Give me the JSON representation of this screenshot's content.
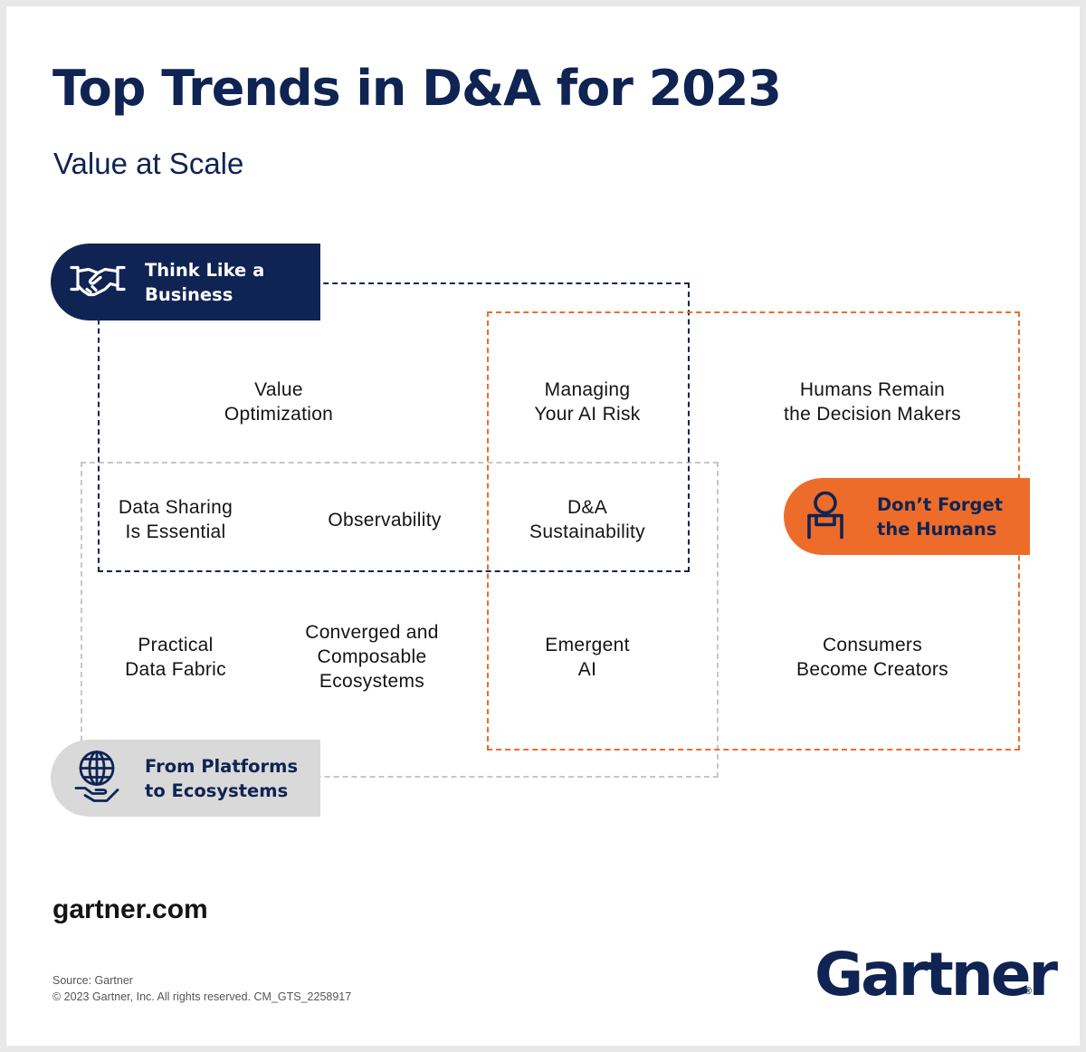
{
  "title": "Top Trends in D&A for 2023",
  "subtitle": "Value at Scale",
  "themes": {
    "business": {
      "line1": "Think Like a",
      "line2": "Business",
      "icon": "handshake-icon"
    },
    "humans": {
      "line1": "Don’t Forget",
      "line2": "the Humans",
      "icon": "person-at-desk-icon"
    },
    "platforms": {
      "line1": "From Platforms",
      "line2": "to Ecosystems",
      "icon": "globe-in-hand-icon"
    }
  },
  "trends": {
    "value_optimization": [
      "Value",
      "Optimization"
    ],
    "managing_ai_risk": [
      "Managing",
      "Your AI Risk"
    ],
    "humans_remain": [
      "Humans Remain",
      "the Decision Makers"
    ],
    "data_sharing": [
      "Data Sharing",
      "Is Essential"
    ],
    "observability": [
      "Observability"
    ],
    "sustainability": [
      "D&A",
      "Sustainability"
    ],
    "data_fabric": [
      "Practical",
      "Data Fabric"
    ],
    "converged": [
      "Converged and",
      "Composable",
      "Ecosystems"
    ],
    "emergent_ai": [
      "Emergent",
      "AI"
    ],
    "consumers": [
      "Consumers",
      "Become Creators"
    ]
  },
  "footer": {
    "website": "gartner.com",
    "source": "Source: Gartner",
    "copyright": "© 2023 Gartner, Inc. All rights reserved. CM_GTS_2258917",
    "logo": "Gartner",
    "logo_mark": "®"
  },
  "colors": {
    "navy": "#0f2453",
    "orange": "#ee6c2a",
    "gray": "#d9d9d9"
  }
}
